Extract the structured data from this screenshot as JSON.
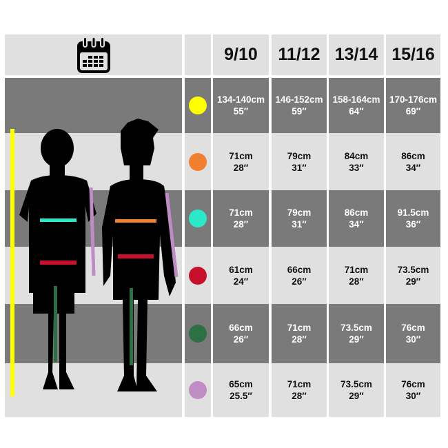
{
  "header": {
    "icon": "calendar-icon",
    "sizes": [
      "9/10",
      "11/12",
      "13/14",
      "15/16"
    ]
  },
  "rows": [
    {
      "measure_color": "#ffff00",
      "values": [
        [
          "134-140cm",
          "55″"
        ],
        [
          "146-152cm",
          "59″"
        ],
        [
          "158-164cm",
          "64″"
        ],
        [
          "170-176cm",
          "69″"
        ]
      ]
    },
    {
      "measure_color": "#f07f30",
      "values": [
        [
          "71cm",
          "28″"
        ],
        [
          "79cm",
          "31″"
        ],
        [
          "84cm",
          "33″"
        ],
        [
          "86cm",
          "34″"
        ]
      ]
    },
    {
      "measure_color": "#2de8c8",
      "values": [
        [
          "71cm",
          "28″"
        ],
        [
          "79cm",
          "31″"
        ],
        [
          "86cm",
          "34″"
        ],
        [
          "91.5cm",
          "36″"
        ]
      ]
    },
    {
      "measure_color": "#c8102e",
      "values": [
        [
          "61cm",
          "24″"
        ],
        [
          "66cm",
          "26″"
        ],
        [
          "71cm",
          "28″"
        ],
        [
          "73.5cm",
          "29″"
        ]
      ]
    },
    {
      "measure_color": "#2e7045",
      "values": [
        [
          "66cm",
          "26″"
        ],
        [
          "71cm",
          "28″"
        ],
        [
          "73.5cm",
          "29″"
        ],
        [
          "76cm",
          "30″"
        ]
      ]
    },
    {
      "measure_color": "#c08cc4",
      "values": [
        [
          "65cm",
          "25.5″"
        ],
        [
          "71cm",
          "28″"
        ],
        [
          "73.5cm",
          "29″"
        ],
        [
          "76cm",
          "30″"
        ]
      ]
    }
  ]
}
